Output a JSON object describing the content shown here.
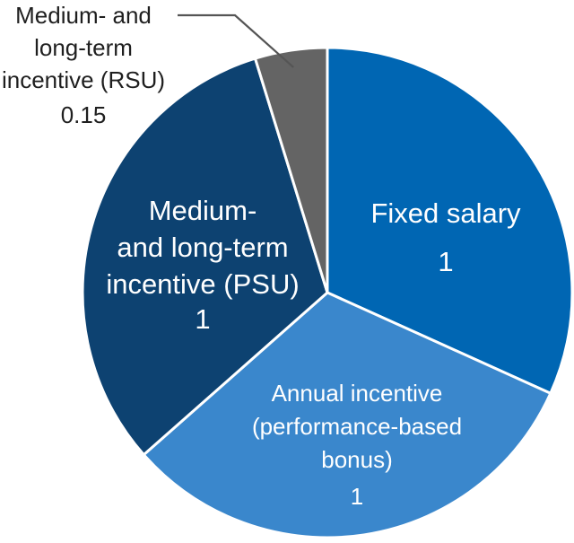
{
  "chart_data": {
    "type": "pie",
    "title": "",
    "start_angle_deg": 0,
    "direction": "clockwise",
    "slices": [
      {
        "label_lines": [
          "Fixed salary"
        ],
        "value": 1,
        "value_label": "1",
        "color": "#0066b3",
        "text_color": "#ffffff"
      },
      {
        "label_lines": [
          "Annual incentive",
          "(performance-based",
          "bonus)"
        ],
        "value": 1,
        "value_label": "1",
        "color": "#3a87cc",
        "text_color": "#ffffff"
      },
      {
        "label_lines": [
          "Medium-",
          "and long-term",
          "incentive (PSU)"
        ],
        "value": 1,
        "value_label": "1",
        "color": "#0d4271",
        "text_color": "#ffffff"
      },
      {
        "label_lines": [
          "Medium- and",
          "long-term",
          "incentive (RSU)"
        ],
        "value": 0.15,
        "value_label": "0.15",
        "color": "#646464",
        "text_color": "#1f1f1f"
      }
    ]
  }
}
